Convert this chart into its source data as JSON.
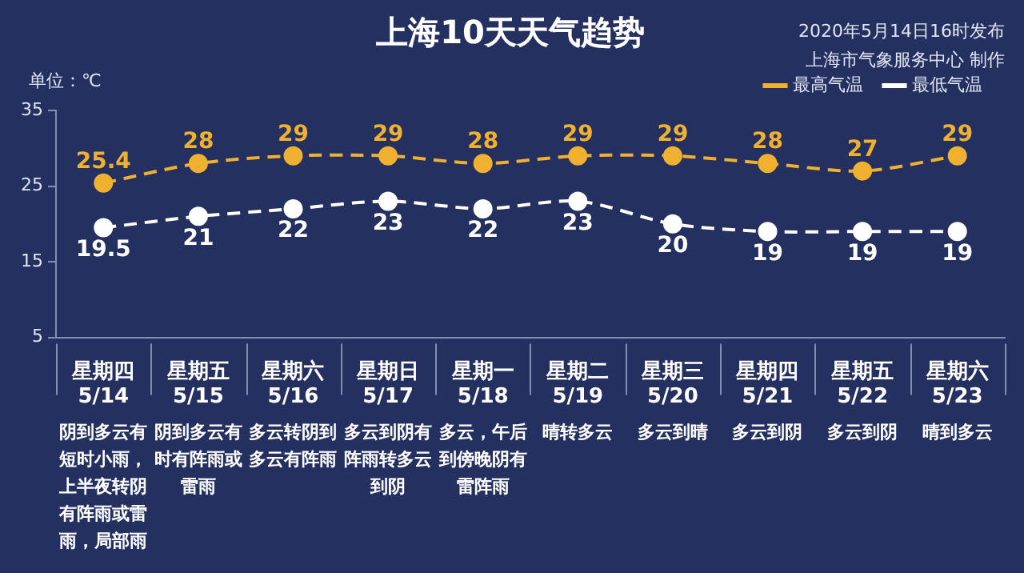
{
  "chart_data": {
    "type": "line",
    "title": "上海10天天气趋势",
    "ylabel": "单位：℃",
    "categories": [
      "星期四\n5/14",
      "星期五\n5/15",
      "星期六\n5/16",
      "星期日\n5/17",
      "星期一\n5/18",
      "星期二\n5/19",
      "星期三\n5/20",
      "星期四\n5/21",
      "星期五\n5/22",
      "星期六\n5/23"
    ],
    "series": [
      {
        "name": "最高气温",
        "color": "#f0b030",
        "values": [
          25.4,
          28,
          29,
          29,
          28,
          29,
          29,
          28,
          27,
          29
        ]
      },
      {
        "name": "最低气温",
        "color": "#ffffff",
        "values": [
          19.5,
          21,
          22,
          23,
          22,
          23,
          20,
          19,
          19,
          19
        ]
      }
    ],
    "ylim": [
      5,
      35
    ],
    "yticks": [
      5,
      15,
      25,
      35
    ],
    "grid": false,
    "legend": "top right",
    "marker": "circle",
    "line_style": "dashed",
    "data_labels": true,
    "annotations": [
      "2020年5月14日16时发布",
      "上海市气象服务中心 制作",
      "阴到多云有短时小雨，上半夜转阴有阵雨或雷雨，局部雨",
      "阴到多云有时有阵雨或雷雨",
      "多云转阴到多云有阵雨",
      "多云到阴有阵雨转多云到阴",
      "多云，午后到傍晚阴有雷阵雨",
      "晴转多云",
      "多云到晴",
      "多云到阴",
      "多云到阴",
      "晴到多云"
    ]
  }
}
